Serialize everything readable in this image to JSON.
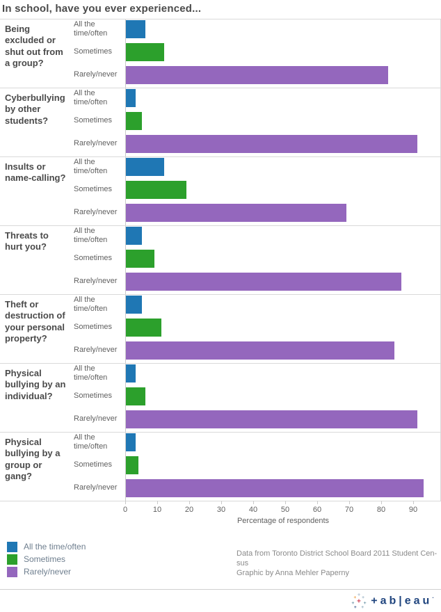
{
  "title": "In school, have you ever experienced...",
  "chart_data": {
    "type": "bar",
    "orientation": "horizontal",
    "title": "In school, have you ever experienced...",
    "xlabel": "Percentage of respondents",
    "x_ticks": [
      0,
      10,
      20,
      30,
      40,
      50,
      60,
      70,
      80,
      90
    ],
    "xlim": [
      0,
      98
    ],
    "grid": false,
    "legend_position": "bottom-left",
    "categories": [
      "Being excluded or shut out from a group?",
      "Cyberbullying by other students?",
      "Insults or name-calling?",
      "Threats to hurt you?",
      "Theft or destruction of your personal property?",
      "Physical bullying by an individual?",
      "Physical bullying by a group or gang?"
    ],
    "series": [
      {
        "name": "All the time/often",
        "color": "#1f77b4",
        "values": [
          6,
          3,
          12,
          5,
          5,
          3,
          3
        ]
      },
      {
        "name": "Sometimes",
        "color": "#2ca02c",
        "values": [
          12,
          5,
          19,
          9,
          11,
          6,
          4
        ]
      },
      {
        "name": "Rarely/never",
        "color": "#9467bd",
        "values": [
          82,
          91,
          69,
          86,
          84,
          91,
          93
        ]
      }
    ]
  },
  "legend": {
    "items": [
      {
        "label": "All the time/often",
        "color": "#1f77b4"
      },
      {
        "label": "Sometimes",
        "color": "#2ca02c"
      },
      {
        "label": "Rarely/never",
        "color": "#9467bd"
      }
    ]
  },
  "attribution": {
    "lines": [
      "Data from Toronto District School Board 2011 Student Cen-",
      "sus",
      "Graphic by Anna Mehler Paperny"
    ]
  },
  "tableau": {
    "wordmark": "+ab|eau",
    "brand_color": "#1f447e"
  }
}
